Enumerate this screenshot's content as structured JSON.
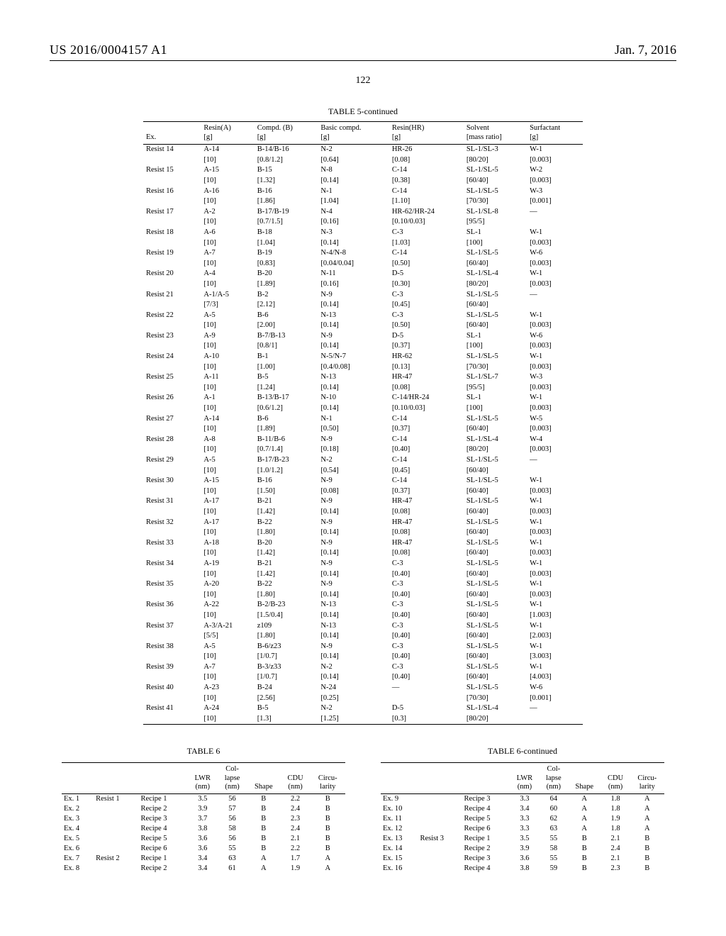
{
  "header": {
    "left": "US 2016/0004157 A1",
    "right": "Jan. 7, 2016"
  },
  "page_number": "122",
  "table5": {
    "caption": "TABLE 5-continued",
    "columns": [
      "Ex.",
      "Resin(A)\n[g]",
      "Compd. (B)\n[g]",
      "Basic compd.\n[g]",
      "Resin(HR)\n[g]",
      "Solvent\n[mass ratio]",
      "Surfactant\n[g]"
    ],
    "rows": [
      {
        "ex": "Resist 14",
        "a": "A-14\n[10]",
        "b": "B-14/B-16\n[0.8/1.2]",
        "n": "N-2\n[0.64]",
        "hr": "HR-26\n[0.08]",
        "s": "SL-1/SL-3\n[80/20]",
        "w": "W-1\n[0.003]"
      },
      {
        "ex": "Resist 15",
        "a": "A-15\n[10]",
        "b": "B-15\n[1.32]",
        "n": "N-8\n[0.14]",
        "hr": "C-14\n[0.38]",
        "s": "SL-1/SL-5\n[60/40]",
        "w": "W-2\n[0.003]"
      },
      {
        "ex": "Resist 16",
        "a": "A-16\n[10]",
        "b": "B-16\n[1.86]",
        "n": "N-1\n[1.04]",
        "hr": "C-14\n[1.10]",
        "s": "SL-1/SL-5\n[70/30]",
        "w": "W-3\n[0.001]"
      },
      {
        "ex": "Resist 17",
        "a": "A-2\n[10]",
        "b": "B-17/B-19\n[0.7/1.5]",
        "n": "N-4\n[0.16]",
        "hr": "HR-62/HR-24\n[0.10/0.03]",
        "s": "SL-1/SL-8\n[95/5]",
        "w": "—"
      },
      {
        "ex": "Resist 18",
        "a": "A-6\n[10]",
        "b": "B-18\n[1.04]",
        "n": "N-3\n[0.14]",
        "hr": "C-3\n[1.03]",
        "s": "SL-1\n[100]",
        "w": "W-1\n[0.003]"
      },
      {
        "ex": "Resist 19",
        "a": "A-7\n[10]",
        "b": "B-19\n[0.83]",
        "n": "N-4/N-8\n[0.04/0.04]",
        "hr": "C-14\n[0.50]",
        "s": "SL-1/SL-5\n[60/40]",
        "w": "W-6\n[0.003]"
      },
      {
        "ex": "Resist 20",
        "a": "A-4\n[10]",
        "b": "B-20\n[1.89]",
        "n": "N-11\n[0.16]",
        "hr": "D-5\n[0.30]",
        "s": "SL-1/SL-4\n[80/20]",
        "w": "W-1\n[0.003]"
      },
      {
        "ex": "Resist 21",
        "a": "A-1/A-5\n[7/3]",
        "b": "B-2\n[2.12]",
        "n": "N-9\n[0.14]",
        "hr": "C-3\n[0.45]",
        "s": "SL-1/SL-5\n[60/40]",
        "w": "—"
      },
      {
        "ex": "Resist 22",
        "a": "A-5\n[10]",
        "b": "B-6\n[2.00]",
        "n": "N-13\n[0.14]",
        "hr": "C-3\n[0.50]",
        "s": "SL-1/SL-5\n[60/40]",
        "w": "W-1\n[0.003]"
      },
      {
        "ex": "Resist 23",
        "a": "A-9\n[10]",
        "b": "B-7/B-13\n[0.8/1]",
        "n": "N-9\n[0.14]",
        "hr": "D-5\n[0.37]",
        "s": "SL-1\n[100]",
        "w": "W-6\n[0.003]"
      },
      {
        "ex": "Resist 24",
        "a": "A-10\n[10]",
        "b": "B-1\n[1.00]",
        "n": "N-5/N-7\n[0.4/0.08]",
        "hr": "HR-62\n[0.13]",
        "s": "SL-1/SL-5\n[70/30]",
        "w": "W-1\n[0.003]"
      },
      {
        "ex": "Resist 25",
        "a": "A-11\n[10]",
        "b": "B-5\n[1.24]",
        "n": "N-13\n[0.14]",
        "hr": "HR-47\n[0.08]",
        "s": "SL-1/SL-7\n[95/5]",
        "w": "W-3\n[0.003]"
      },
      {
        "ex": "Resist 26",
        "a": "A-1\n[10]",
        "b": "B-13/B-17\n[0.6/1.2]",
        "n": "N-10\n[0.14]",
        "hr": "C-14/HR-24\n[0.10/0.03]",
        "s": "SL-1\n[100]",
        "w": "W-1\n[0.003]"
      },
      {
        "ex": "Resist 27",
        "a": "A-14\n[10]",
        "b": "B-6\n[1.89]",
        "n": "N-1\n[0.50]",
        "hr": "C-14\n[0.37]",
        "s": "SL-1/SL-5\n[60/40]",
        "w": "W-5\n[0.003]"
      },
      {
        "ex": "Resist 28",
        "a": "A-8\n[10]",
        "b": "B-11/B-6\n[0.7/1.4]",
        "n": "N-9\n[0.18]",
        "hr": "C-14\n[0.40]",
        "s": "SL-1/SL-4\n[80/20]",
        "w": "W-4\n[0.003]"
      },
      {
        "ex": "Resist 29",
        "a": "A-5\n[10]",
        "b": "B-17/B-23\n[1.0/1.2]",
        "n": "N-2\n[0.54]",
        "hr": "C-14\n[0.45]",
        "s": "SL-1/SL-5\n[60/40]",
        "w": "—"
      },
      {
        "ex": "Resist 30",
        "a": "A-15\n[10]",
        "b": "B-16\n[1.50]",
        "n": "N-9\n[0.08]",
        "hr": "C-14\n[0.37]",
        "s": "SL-1/SL-5\n[60/40]",
        "w": "W-1\n[0.003]"
      },
      {
        "ex": "Resist 31",
        "a": "A-17\n[10]",
        "b": "B-21\n[1.42]",
        "n": "N-9\n[0.14]",
        "hr": "HR-47\n[0.08]",
        "s": "SL-1/SL-5\n[60/40]",
        "w": "W-1\n[0.003]"
      },
      {
        "ex": "Resist 32",
        "a": "A-17\n[10]",
        "b": "B-22\n[1.80]",
        "n": "N-9\n[0.14]",
        "hr": "HR-47\n[0.08]",
        "s": "SL-1/SL-5\n[60/40]",
        "w": "W-1\n[0.003]"
      },
      {
        "ex": "Resist 33",
        "a": "A-18\n[10]",
        "b": "B-20\n[1.42]",
        "n": "N-9\n[0.14]",
        "hr": "HR-47\n[0.08]",
        "s": "SL-1/SL-5\n[60/40]",
        "w": "W-1\n[0.003]"
      },
      {
        "ex": "Resist 34",
        "a": "A-19\n[10]",
        "b": "B-21\n[1.42]",
        "n": "N-9\n[0.14]",
        "hr": "C-3\n[0.40]",
        "s": "SL-1/SL-5\n[60/40]",
        "w": "W-1\n[0.003]"
      },
      {
        "ex": "Resist 35",
        "a": "A-20\n[10]",
        "b": "B-22\n[1.80]",
        "n": "N-9\n[0.14]",
        "hr": "C-3\n[0.40]",
        "s": "SL-1/SL-5\n[60/40]",
        "w": "W-1\n[0.003]"
      },
      {
        "ex": "Resist 36",
        "a": "A-22\n[10]",
        "b": "B-2/B-23\n[1.5/0.4]",
        "n": "N-13\n[0.14]",
        "hr": "C-3\n[0.40]",
        "s": "SL-1/SL-5\n[60/40]",
        "w": "W-1\n[1.003]"
      },
      {
        "ex": "Resist 37",
        "a": "A-3/A-21\n[5/5]",
        "b": "z109\n[1.80]",
        "n": "N-13\n[0.14]",
        "hr": "C-3\n[0.40]",
        "s": "SL-1/SL-5\n[60/40]",
        "w": "W-1\n[2.003]"
      },
      {
        "ex": "Resist 38",
        "a": "A-5\n[10]",
        "b": "B-6/z23\n[1/0.7]",
        "n": "N-9\n[0.14]",
        "hr": "C-3\n[0.40]",
        "s": "SL-1/SL-5\n[60/40]",
        "w": "W-1\n[3.003]"
      },
      {
        "ex": "Resist 39",
        "a": "A-7\n[10]",
        "b": "B-3/z33\n[1/0.7]",
        "n": "N-2\n[0.14]",
        "hr": "C-3\n[0.40]",
        "s": "SL-1/SL-5\n[60/40]",
        "w": "W-1\n[4.003]"
      },
      {
        "ex": "Resist 40",
        "a": "A-23\n[10]",
        "b": "B-24\n[2.56]",
        "n": "N-24\n[0.25]",
        "hr": "—",
        "s": "SL-1/SL-5\n[70/30]",
        "w": "W-6\n[0.001]"
      },
      {
        "ex": "Resist 41",
        "a": "A-24\n[10]",
        "b": "B-5\n[1.3]",
        "n": "N-2\n[1.25]",
        "hr": "D-5\n[0.3]",
        "s": "SL-1/SL-4\n[80/20]",
        "w": "—"
      }
    ]
  },
  "table6": {
    "caption_left": "TABLE 6",
    "caption_right": "TABLE 6-continued",
    "columns": [
      "",
      "",
      "",
      "LWR\n(nm)",
      "Col-\nlapse\n(nm)",
      "Shape",
      "CDU\n(nm)",
      "Circu-\nlarity"
    ],
    "left_rows": [
      {
        "ex": "Ex. 1",
        "resist": "Resist 1",
        "recipe": "Recipe 1",
        "lwr": "3.5",
        "col": "56",
        "shape": "B",
        "cdu": "2.2",
        "circ": "B"
      },
      {
        "ex": "Ex. 2",
        "resist": "",
        "recipe": "Recipe 2",
        "lwr": "3.9",
        "col": "57",
        "shape": "B",
        "cdu": "2.4",
        "circ": "B"
      },
      {
        "ex": "Ex. 3",
        "resist": "",
        "recipe": "Recipe 3",
        "lwr": "3.7",
        "col": "56",
        "shape": "B",
        "cdu": "2.3",
        "circ": "B"
      },
      {
        "ex": "Ex. 4",
        "resist": "",
        "recipe": "Recipe 4",
        "lwr": "3.8",
        "col": "58",
        "shape": "B",
        "cdu": "2.4",
        "circ": "B"
      },
      {
        "ex": "Ex. 5",
        "resist": "",
        "recipe": "Recipe 5",
        "lwr": "3.6",
        "col": "56",
        "shape": "B",
        "cdu": "2.1",
        "circ": "B"
      },
      {
        "ex": "Ex. 6",
        "resist": "",
        "recipe": "Recipe 6",
        "lwr": "3.6",
        "col": "55",
        "shape": "B",
        "cdu": "2.2",
        "circ": "B"
      },
      {
        "ex": "Ex. 7",
        "resist": "Resist 2",
        "recipe": "Recipe 1",
        "lwr": "3.4",
        "col": "63",
        "shape": "A",
        "cdu": "1.7",
        "circ": "A"
      },
      {
        "ex": "Ex. 8",
        "resist": "",
        "recipe": "Recipe 2",
        "lwr": "3.4",
        "col": "61",
        "shape": "A",
        "cdu": "1.9",
        "circ": "A"
      }
    ],
    "right_rows": [
      {
        "ex": "Ex. 9",
        "resist": "",
        "recipe": "Recipe 3",
        "lwr": "3.3",
        "col": "64",
        "shape": "A",
        "cdu": "1.8",
        "circ": "A"
      },
      {
        "ex": "Ex. 10",
        "resist": "",
        "recipe": "Recipe 4",
        "lwr": "3.4",
        "col": "60",
        "shape": "A",
        "cdu": "1.8",
        "circ": "A"
      },
      {
        "ex": "Ex. 11",
        "resist": "",
        "recipe": "Recipe 5",
        "lwr": "3.3",
        "col": "62",
        "shape": "A",
        "cdu": "1.9",
        "circ": "A"
      },
      {
        "ex": "Ex. 12",
        "resist": "",
        "recipe": "Recipe 6",
        "lwr": "3.3",
        "col": "63",
        "shape": "A",
        "cdu": "1.8",
        "circ": "A"
      },
      {
        "ex": "Ex. 13",
        "resist": "Resist 3",
        "recipe": "Recipe 1",
        "lwr": "3.5",
        "col": "55",
        "shape": "B",
        "cdu": "2.1",
        "circ": "B"
      },
      {
        "ex": "Ex. 14",
        "resist": "",
        "recipe": "Recipe 2",
        "lwr": "3.9",
        "col": "58",
        "shape": "B",
        "cdu": "2.4",
        "circ": "B"
      },
      {
        "ex": "Ex. 15",
        "resist": "",
        "recipe": "Recipe 3",
        "lwr": "3.6",
        "col": "55",
        "shape": "B",
        "cdu": "2.1",
        "circ": "B"
      },
      {
        "ex": "Ex. 16",
        "resist": "",
        "recipe": "Recipe 4",
        "lwr": "3.8",
        "col": "59",
        "shape": "B",
        "cdu": "2.3",
        "circ": "B"
      }
    ]
  }
}
